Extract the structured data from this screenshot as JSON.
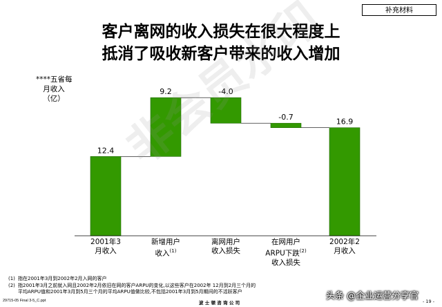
{
  "header": {
    "tag": "补充材料"
  },
  "title_lines": [
    "客户离网的收入损失在很大程度上",
    "抵消了吸收新客户带来的收入增加"
  ],
  "chart_data": {
    "type": "bar",
    "subtype": "waterfall",
    "ylabel_lines": [
      "****五省每",
      "月收入",
      "（亿）"
    ],
    "categories": [
      {
        "lines": [
          "2001年3",
          "月收入"
        ],
        "note": ""
      },
      {
        "lines": [
          "新增用户",
          "收入"
        ],
        "note": "(1)"
      },
      {
        "lines": [
          "离网用户",
          "收入损失"
        ],
        "note": ""
      },
      {
        "lines": [
          "在网用户",
          "ARPU下跌",
          "收入损失"
        ],
        "note": "(2)"
      },
      {
        "lines": [
          "2002年2",
          "月收入"
        ],
        "note": ""
      }
    ],
    "bars": [
      {
        "label": "12.4",
        "base": 0,
        "top": 12.4
      },
      {
        "label": "9.2",
        "base": 12.4,
        "top": 21.6
      },
      {
        "label": "-4.0",
        "base": 17.6,
        "top": 21.6
      },
      {
        "label": "-0.7",
        "base": 16.9,
        "top": 17.6
      },
      {
        "label": "16.9",
        "base": 0,
        "top": 16.9
      }
    ],
    "bar_color": "#339900",
    "bar_edge": "#1f6600"
  },
  "footnotes": [
    {
      "num": "(1)",
      "lines": [
        "指在2001年3月到2002年2月入网的客户"
      ]
    },
    {
      "num": "(2)",
      "lines": [
        "指2001年3月之前就入网且2002年2月依旧在网的客户ARPU的变化,以这些客户在2002年 12月到2月三个月的",
        "平均ARPU值和2001年3月到5月三个月的平均ARPU值做比较,不包括2001年3月到5月期间的不活跃客户"
      ]
    }
  ],
  "footer": {
    "file": "29715-05 Final 3-5_C.ppt",
    "company": "波 士 顿 咨 询 公 司",
    "page": "- 19 -"
  },
  "watermark": "非会员水印",
  "credit": "头条 @企业运营分享官"
}
